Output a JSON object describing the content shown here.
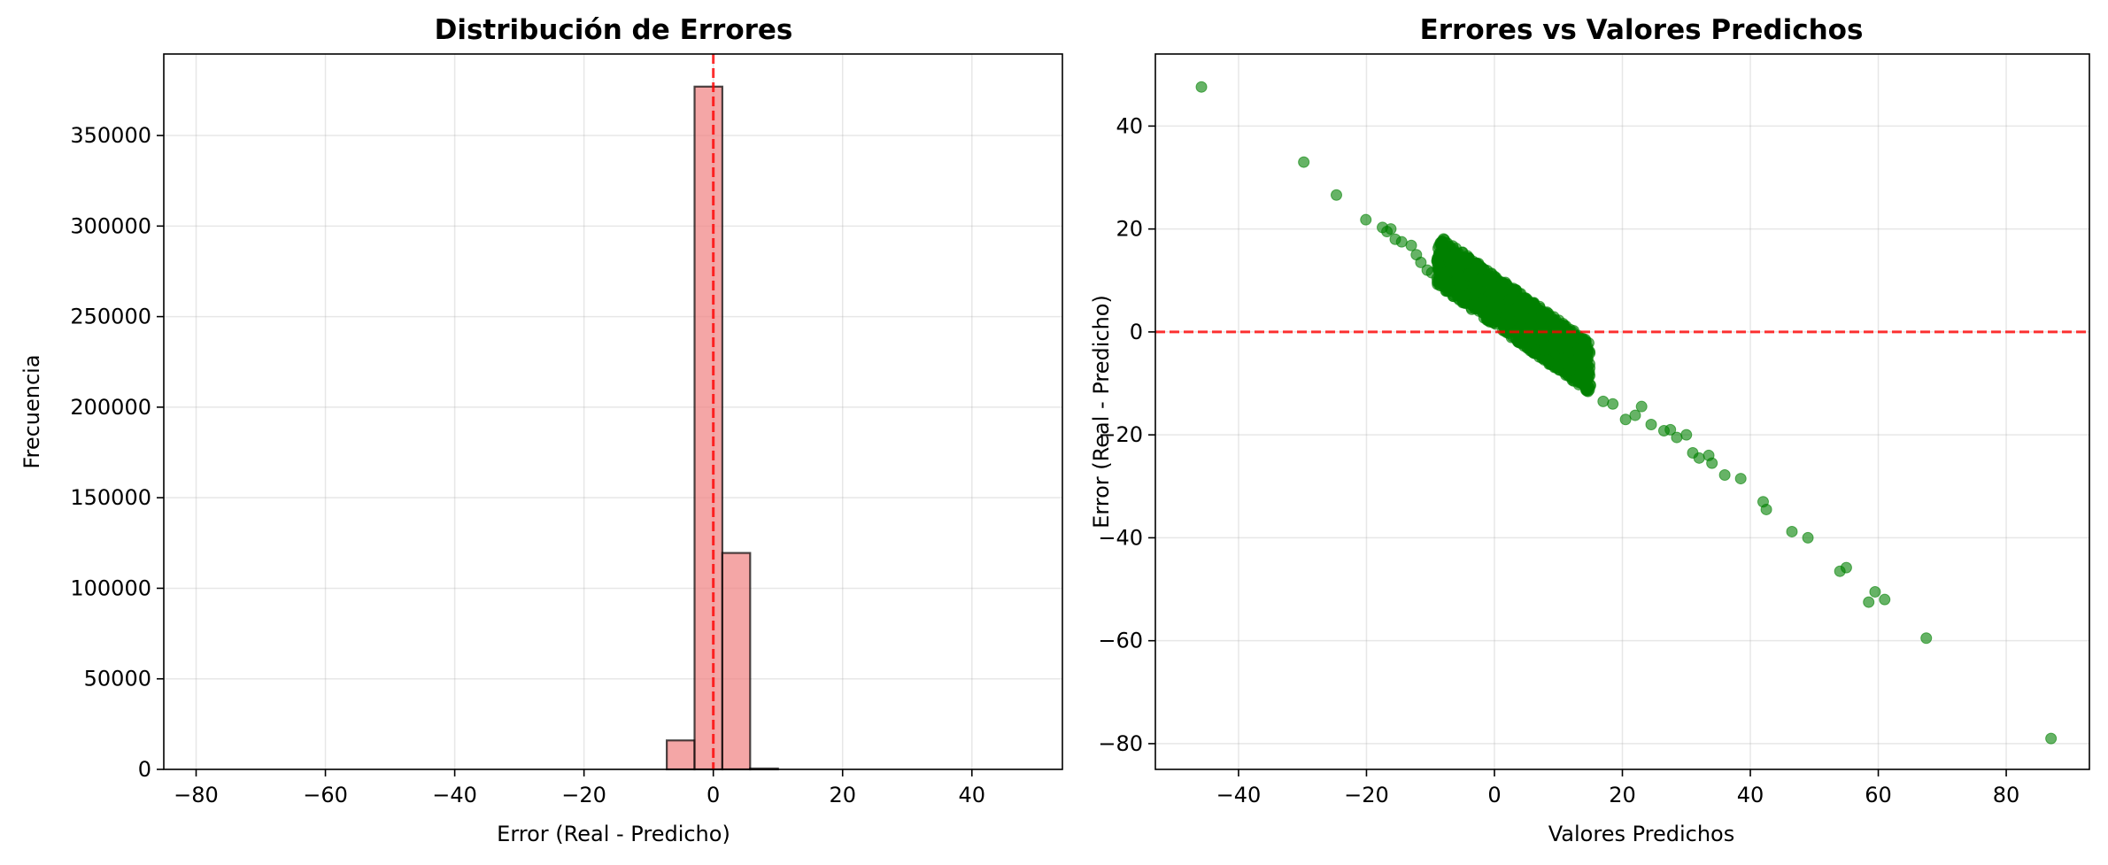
{
  "chart_data": [
    {
      "type": "bar",
      "title": "Distribución de Errores",
      "xlabel": "Error (Real - Predicho)",
      "ylabel": "Frecuencia",
      "xlim": [
        -85,
        54
      ],
      "ylim": [
        0,
        395000
      ],
      "xticks": [
        -80,
        -60,
        -40,
        -20,
        0,
        20,
        40
      ],
      "xtick_labels": [
        "−80",
        "−60",
        "−40",
        "−20",
        "0",
        "20",
        "40"
      ],
      "yticks": [
        0,
        50000,
        100000,
        150000,
        200000,
        250000,
        300000,
        350000
      ],
      "ytick_labels": [
        "0",
        "50000",
        "100000",
        "150000",
        "200000",
        "250000",
        "300000",
        "350000"
      ],
      "grid": true,
      "bar_color": "#f08080",
      "edge_color": "#000000",
      "bins": [
        {
          "x0": -7.2,
          "x1": -2.9,
          "count": 16000
        },
        {
          "x0": -2.9,
          "x1": 1.4,
          "count": 377000
        },
        {
          "x0": 1.4,
          "x1": 5.7,
          "count": 119500
        },
        {
          "x0": 5.7,
          "x1": 10.0,
          "count": 500
        }
      ],
      "vline": {
        "x": 0,
        "color": "#ff0000",
        "style": "dashed"
      }
    },
    {
      "type": "scatter",
      "title": "Errores vs Valores Predichos",
      "xlabel": "Valores Predichos",
      "ylabel": "Error (Real - Predicho)",
      "xlim": [
        -53,
        93
      ],
      "ylim": [
        -85,
        54
      ],
      "xticks": [
        -40,
        -20,
        0,
        20,
        40,
        60,
        80
      ],
      "xtick_labels": [
        "−40",
        "−20",
        "0",
        "20",
        "40",
        "60",
        "80"
      ],
      "yticks": [
        -80,
        -60,
        -40,
        -20,
        0,
        20,
        40
      ],
      "ytick_labels": [
        "−80",
        "−60",
        "−40",
        "−20",
        "0",
        "20",
        "40"
      ],
      "grid": true,
      "point_color": "#008000",
      "hline": {
        "y": 0,
        "color": "#ff0000",
        "style": "dashed"
      },
      "outliers": [
        {
          "x": -45.8,
          "y": 47.6
        },
        {
          "x": -29.8,
          "y": 33.0
        },
        {
          "x": -24.7,
          "y": 26.6
        },
        {
          "x": -20.1,
          "y": 21.8
        },
        {
          "x": -17.5,
          "y": 20.3
        },
        {
          "x": -16.8,
          "y": 19.5
        },
        {
          "x": -16.2,
          "y": 20.0
        },
        {
          "x": -15.5,
          "y": 18.0
        },
        {
          "x": -14.5,
          "y": 17.5
        },
        {
          "x": -13.0,
          "y": 16.8
        },
        {
          "x": -12.2,
          "y": 15.0
        },
        {
          "x": -11.5,
          "y": 13.5
        },
        {
          "x": -10.5,
          "y": 12.0
        },
        {
          "x": -9.8,
          "y": 11.5
        },
        {
          "x": -7.0,
          "y": 14.5
        },
        {
          "x": -8.5,
          "y": 9.0
        },
        {
          "x": 14.5,
          "y": -9.0
        },
        {
          "x": 17.0,
          "y": -13.5
        },
        {
          "x": 18.5,
          "y": -14.0
        },
        {
          "x": 20.5,
          "y": -17.0
        },
        {
          "x": 22.0,
          "y": -16.2
        },
        {
          "x": 23.0,
          "y": -14.5
        },
        {
          "x": 24.5,
          "y": -18.0
        },
        {
          "x": 26.5,
          "y": -19.2
        },
        {
          "x": 27.5,
          "y": -19.0
        },
        {
          "x": 28.5,
          "y": -20.5
        },
        {
          "x": 30.0,
          "y": -20.0
        },
        {
          "x": 31.0,
          "y": -23.5
        },
        {
          "x": 32.0,
          "y": -24.5
        },
        {
          "x": 33.5,
          "y": -24.0
        },
        {
          "x": 34.0,
          "y": -25.5
        },
        {
          "x": 36.0,
          "y": -27.8
        },
        {
          "x": 38.5,
          "y": -28.5
        },
        {
          "x": 42.0,
          "y": -33.0
        },
        {
          "x": 42.5,
          "y": -34.5
        },
        {
          "x": 46.5,
          "y": -38.8
        },
        {
          "x": 49.0,
          "y": -40.0
        },
        {
          "x": 54.0,
          "y": -46.5
        },
        {
          "x": 55.0,
          "y": -45.8
        },
        {
          "x": 58.5,
          "y": -52.5
        },
        {
          "x": 59.5,
          "y": -50.5
        },
        {
          "x": 61.0,
          "y": -52.0
        },
        {
          "x": 67.5,
          "y": -59.5
        },
        {
          "x": 87.0,
          "y": -79.0
        }
      ],
      "main_cloud": {
        "x_range": [
          -9,
          15
        ],
        "trend_slope": -0.88,
        "trend_intercept": 6.2,
        "spread": 5.5
      }
    }
  ]
}
